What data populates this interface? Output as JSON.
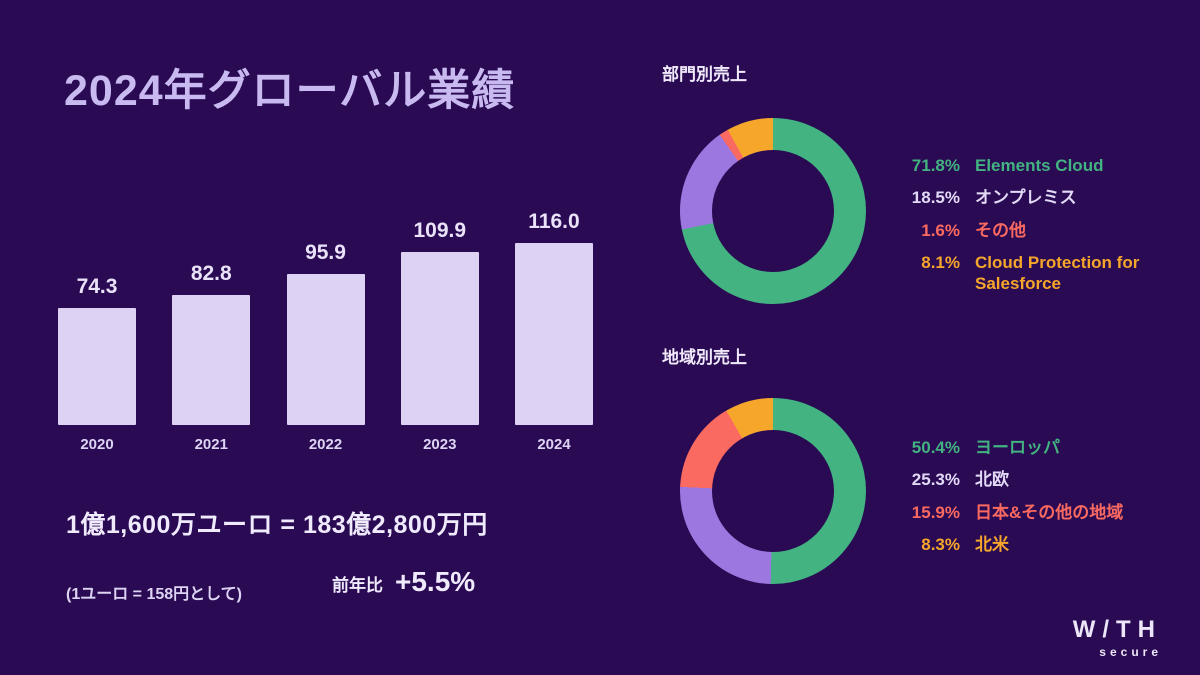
{
  "page": {
    "bg": "#290a53",
    "title": "2024年グローバル業績"
  },
  "summary": {
    "conversion": "1億1,600万ユーロ = 183億2,800万円",
    "rate_note": "(1ユーロ = 158円として)",
    "yoy_label": "前年比",
    "yoy_value": "+5.5%"
  },
  "logo": {
    "word": "W/TH",
    "sub": "secure"
  },
  "chart_data": [
    {
      "id": "annual-revenue-bar",
      "type": "bar",
      "title": "2024年グローバル業績",
      "categories": [
        "2020",
        "2021",
        "2022",
        "2023",
        "2024"
      ],
      "values": [
        74.3,
        82.8,
        95.9,
        109.9,
        116.0
      ],
      "value_labels": [
        "74.3",
        "82.8",
        "95.9",
        "109.9",
        "116.0"
      ],
      "bar_color": "#ddd2f4",
      "xlabel": "",
      "ylabel": "",
      "ylim": [
        0,
        130
      ],
      "grid": false,
      "legend_position": "none"
    },
    {
      "id": "segment-donut",
      "type": "pie",
      "title": "部門別売上",
      "labels": [
        "Elements Cloud",
        "オンプレミス",
        "その他",
        "Cloud Protection for Salesforce"
      ],
      "values": [
        71.8,
        18.5,
        1.6,
        8.1
      ],
      "colors": [
        "#42b381",
        "#9c77e0",
        "#fb6a60",
        "#f6a62b"
      ],
      "legend": [
        {
          "pct": "71.8%",
          "label": "Elements Cloud",
          "pct_color": "#42b381",
          "label_color": "#42b381"
        },
        {
          "pct": "18.5%",
          "label": "オンプレミス",
          "pct_color": "#e2d9f6",
          "label_color": "#e2d9f6"
        },
        {
          "pct": "1.6%",
          "label": "その他",
          "pct_color": "#fb6a60",
          "label_color": "#fb6a60"
        },
        {
          "pct": "8.1%",
          "label": "Cloud Protection for Salesforce",
          "pct_color": "#f6a62b",
          "label_color": "#f6a62b"
        }
      ],
      "legend_position": "right"
    },
    {
      "id": "region-donut",
      "type": "pie",
      "title": "地域別売上",
      "labels": [
        "ヨーロッパ",
        "北欧",
        "日本&その他の地域",
        "北米"
      ],
      "values": [
        50.4,
        25.3,
        15.9,
        8.3
      ],
      "colors": [
        "#42b381",
        "#9c77e0",
        "#fb6a60",
        "#f6a62b"
      ],
      "legend": [
        {
          "pct": "50.4%",
          "label": "ヨーロッパ",
          "pct_color": "#42b381",
          "label_color": "#42b381"
        },
        {
          "pct": "25.3%",
          "label": "北欧",
          "pct_color": "#e2d9f6",
          "label_color": "#e2d9f6"
        },
        {
          "pct": "15.9%",
          "label": "日本&その他の地域",
          "pct_color": "#fb6a60",
          "label_color": "#fb6a60"
        },
        {
          "pct": "8.3%",
          "label": "北米",
          "pct_color": "#f6a62b",
          "label_color": "#f6a62b"
        }
      ],
      "legend_position": "right"
    }
  ]
}
